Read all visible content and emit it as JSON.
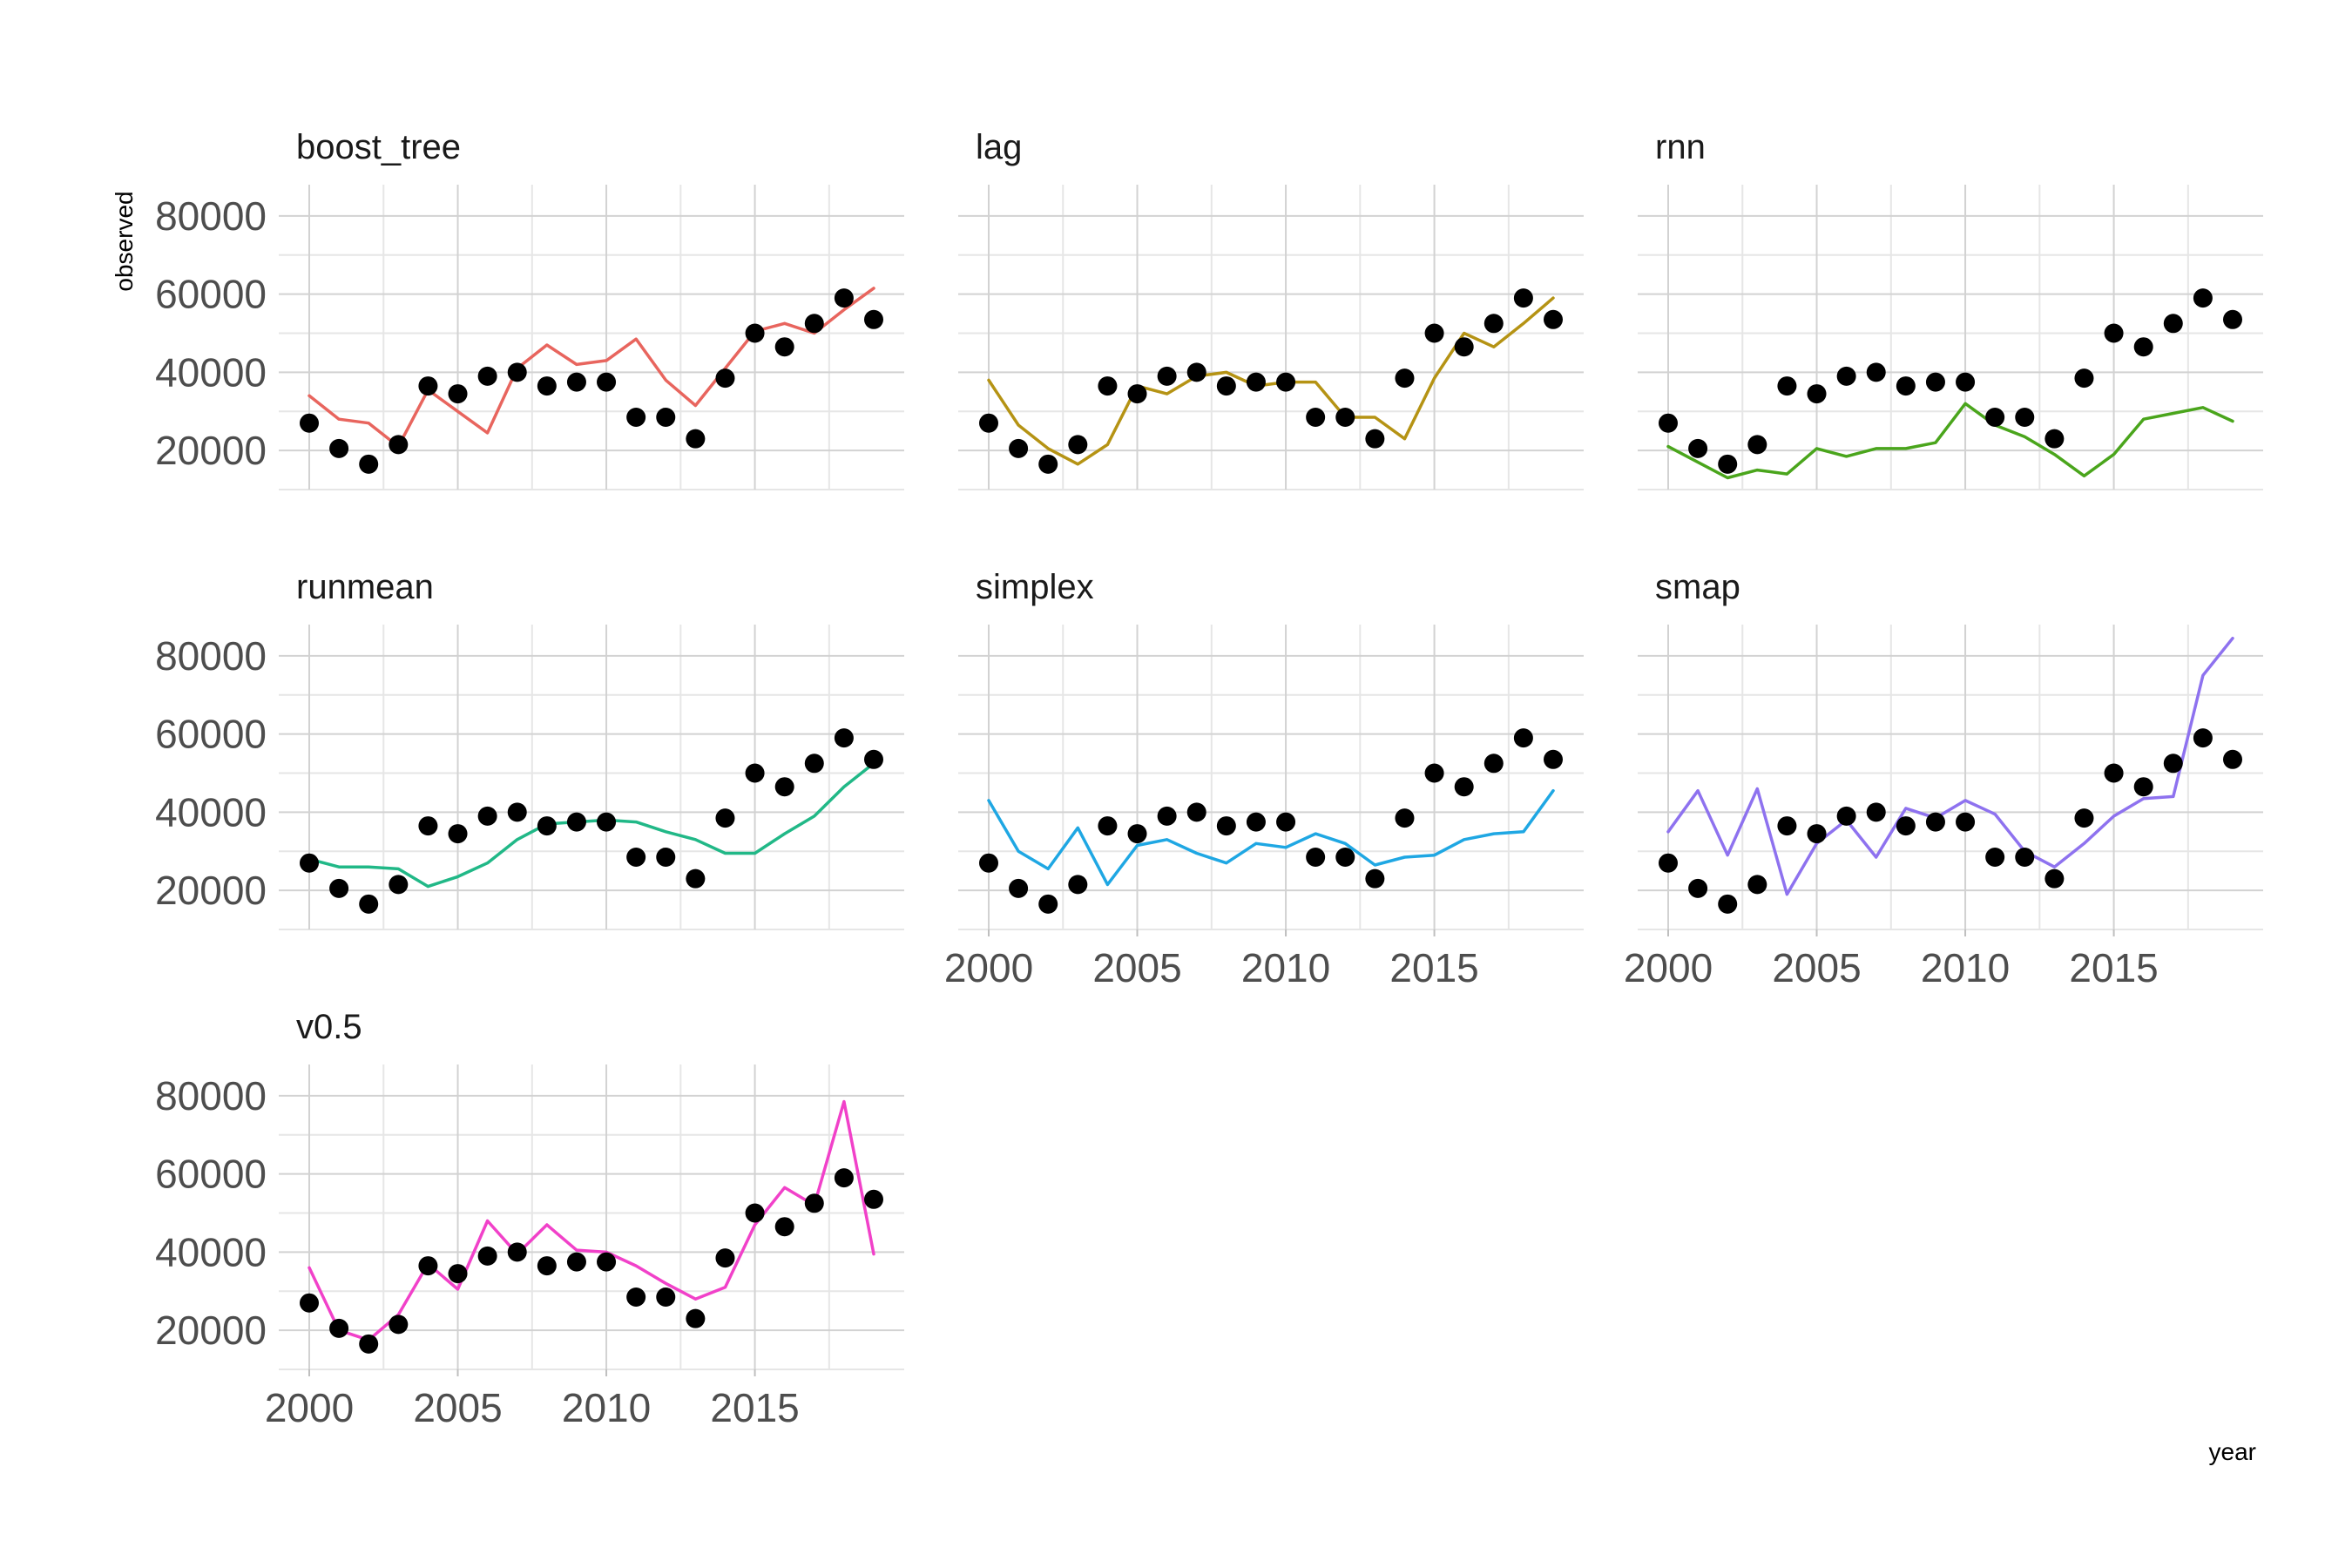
{
  "chart_data": {
    "type": "line",
    "xlabel": "year",
    "ylabel": "observed",
    "xlim": [
      2000,
      2019
    ],
    "ylim": [
      10000,
      88000
    ],
    "x_ticks": [
      2000,
      2005,
      2010,
      2015
    ],
    "y_ticks": [
      20000,
      40000,
      60000,
      80000
    ],
    "grid": "on",
    "years": [
      2000,
      2001,
      2002,
      2003,
      2004,
      2005,
      2006,
      2007,
      2008,
      2009,
      2010,
      2011,
      2012,
      2013,
      2014,
      2015,
      2016,
      2017,
      2018,
      2019
    ],
    "observed": [
      27000,
      20500,
      16500,
      21500,
      36500,
      34500,
      39000,
      40000,
      36500,
      37500,
      37500,
      28500,
      28500,
      23000,
      38500,
      50000,
      46500,
      52500,
      59000,
      53500
    ],
    "panels": [
      {
        "name": "boost_tree",
        "color": "#e8655e",
        "values": [
          34000,
          28000,
          27000,
          21000,
          35500,
          30000,
          24500,
          41000,
          47000,
          42000,
          43000,
          48500,
          38000,
          31500,
          41000,
          50500,
          52500,
          50000,
          56000,
          61500
        ]
      },
      {
        "name": "lag",
        "color": "#b59314",
        "values": [
          38000,
          26500,
          20500,
          16500,
          21500,
          36500,
          34500,
          39000,
          40000,
          36500,
          37500,
          37500,
          28500,
          28500,
          23000,
          38500,
          50000,
          46500,
          52500,
          59000
        ]
      },
      {
        "name": "rnn",
        "color": "#4aa51c",
        "values": [
          21000,
          17000,
          13000,
          15000,
          14000,
          20500,
          18500,
          20500,
          20500,
          22000,
          32000,
          26500,
          23500,
          19000,
          13500,
          19000,
          28000,
          29500,
          31000,
          27500
        ]
      },
      {
        "name": "runmean",
        "color": "#21b887",
        "values": [
          28000,
          26000,
          26000,
          25500,
          21000,
          23500,
          27000,
          33000,
          37000,
          37500,
          38000,
          37500,
          35000,
          33000,
          29500,
          29500,
          34500,
          39000,
          46500,
          52500
        ]
      },
      {
        "name": "simplex",
        "color": "#1fa7e3",
        "values": [
          43000,
          30000,
          25500,
          36000,
          21500,
          31500,
          33000,
          29500,
          27000,
          32000,
          31000,
          34500,
          32000,
          26500,
          28500,
          29000,
          33000,
          34500,
          35000,
          45500
        ]
      },
      {
        "name": "smap",
        "color": "#8e72ef",
        "values": [
          35000,
          45500,
          29000,
          46000,
          19000,
          32000,
          38000,
          28500,
          41000,
          38500,
          43000,
          39500,
          30000,
          26000,
          32000,
          39000,
          43500,
          44000,
          75000,
          84500
        ]
      },
      {
        "name": "v0.5",
        "color": "#f141c9",
        "values": [
          36000,
          20000,
          17500,
          24000,
          37000,
          30500,
          48000,
          39500,
          47000,
          40500,
          40000,
          36500,
          32000,
          28000,
          31000,
          47000,
          56500,
          52000,
          78500,
          39500
        ]
      }
    ]
  }
}
